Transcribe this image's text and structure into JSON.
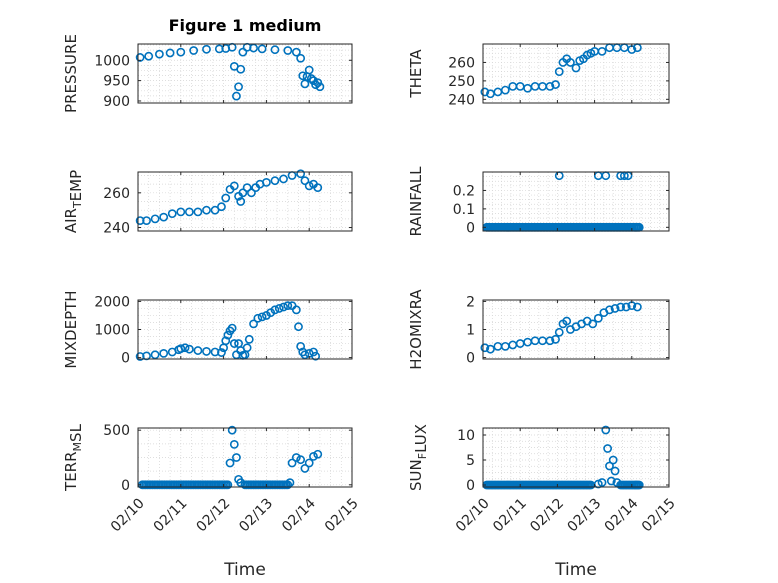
{
  "figure": {
    "title": "Figure 1 medium",
    "marker_color": "#0072BD"
  },
  "chart_data": [
    {
      "type": "scatter",
      "title": "Figure 1 medium",
      "ylabel": "PRESSURE",
      "ylabel_parts": [
        {
          "t": "PRESSURE"
        }
      ],
      "xlabel": "",
      "xlim": [
        0,
        5
      ],
      "ylim": [
        895,
        1040
      ],
      "yticks": [
        900,
        950,
        1000
      ],
      "ytick_labels": [
        "900",
        "950",
        "1000"
      ],
      "xticks": [
        0,
        1,
        2,
        3,
        4,
        5
      ],
      "xtick_labels": [
        "02/10",
        "02/11",
        "02/12",
        "02/13",
        "02/14",
        "02/15"
      ],
      "show_xticklabels": false,
      "series": [
        {
          "x": [
            0.05,
            0.25,
            0.5,
            0.75,
            1.0,
            1.3,
            1.6,
            1.9,
            2.05,
            2.2,
            2.25,
            2.3,
            2.35,
            2.4,
            2.45,
            2.55,
            2.7,
            2.9,
            3.2,
            3.5,
            3.7,
            3.8,
            3.85,
            3.9,
            3.95,
            4.0,
            4.05,
            4.1,
            4.15,
            4.2,
            4.25
          ],
          "y": [
            1007,
            1010,
            1015,
            1018,
            1020,
            1024,
            1027,
            1028,
            1029,
            1032,
            985,
            912,
            935,
            978,
            1020,
            1032,
            1030,
            1028,
            1026,
            1024,
            1020,
            1005,
            962,
            942,
            960,
            976,
            955,
            950,
            940,
            945,
            935
          ]
        }
      ]
    },
    {
      "type": "scatter",
      "ylabel": "THETA",
      "ylabel_parts": [
        {
          "t": "THETA"
        }
      ],
      "xlim": [
        0,
        5
      ],
      "ylim": [
        238,
        270
      ],
      "yticks": [
        240,
        250,
        260
      ],
      "ytick_labels": [
        "240",
        "250",
        "260"
      ],
      "xticks": [
        0,
        1,
        2,
        3,
        4,
        5
      ],
      "xtick_labels": [
        "02/10",
        "02/11",
        "02/12",
        "02/13",
        "02/14",
        "02/15"
      ],
      "show_xticklabels": false,
      "series": [
        {
          "x": [
            0.05,
            0.2,
            0.4,
            0.6,
            0.8,
            1.0,
            1.2,
            1.4,
            1.6,
            1.8,
            1.95,
            2.05,
            2.15,
            2.25,
            2.35,
            2.5,
            2.6,
            2.7,
            2.8,
            2.9,
            3.0,
            3.2,
            3.4,
            3.6,
            3.8,
            4.0,
            4.15
          ],
          "y": [
            244,
            243,
            244,
            245,
            247,
            247,
            246,
            247,
            247,
            247,
            248,
            255,
            260,
            262,
            260,
            257,
            261,
            262,
            264,
            265,
            266,
            266,
            268,
            268,
            268,
            267,
            268
          ]
        }
      ]
    },
    {
      "type": "scatter",
      "ylabel": "AIR_TEMP",
      "ylabel_parts": [
        {
          "t": "AIR"
        },
        {
          "t": "T",
          "sub": true
        },
        {
          "t": "EMP"
        }
      ],
      "xlim": [
        0,
        5
      ],
      "ylim": [
        238,
        272
      ],
      "yticks": [
        240,
        260
      ],
      "ytick_labels": [
        "240",
        "260"
      ],
      "xticks": [
        0,
        1,
        2,
        3,
        4,
        5
      ],
      "xtick_labels": [
        "02/10",
        "02/11",
        "02/12",
        "02/13",
        "02/14",
        "02/15"
      ],
      "show_xticklabels": false,
      "series": [
        {
          "x": [
            0.05,
            0.2,
            0.4,
            0.6,
            0.8,
            1.0,
            1.2,
            1.4,
            1.6,
            1.8,
            1.95,
            2.05,
            2.15,
            2.25,
            2.35,
            2.4,
            2.45,
            2.55,
            2.65,
            2.75,
            2.85,
            3.0,
            3.2,
            3.4,
            3.6,
            3.8,
            3.9,
            4.0,
            4.1,
            4.2
          ],
          "y": [
            244,
            244,
            245,
            246,
            248,
            249,
            249,
            249,
            250,
            250,
            252,
            257,
            262,
            264,
            258,
            255,
            260,
            263,
            260,
            263,
            265,
            266,
            267,
            268,
            270,
            271,
            267,
            264,
            265,
            263
          ]
        }
      ]
    },
    {
      "type": "scatter",
      "ylabel": "RAINFALL",
      "ylabel_parts": [
        {
          "t": "RAINFALL"
        }
      ],
      "xlim": [
        0,
        5
      ],
      "ylim": [
        -0.02,
        0.3
      ],
      "yticks": [
        0,
        0.1,
        0.2
      ],
      "ytick_labels": [
        "0",
        "0.1",
        "0.2"
      ],
      "xticks": [
        0,
        1,
        2,
        3,
        4,
        5
      ],
      "xtick_labels": [
        "02/10",
        "02/11",
        "02/12",
        "02/13",
        "02/14",
        "02/15"
      ],
      "show_xticklabels": false,
      "series": [
        {
          "x": [
            0.1,
            0.3,
            0.5,
            0.7,
            0.9,
            1.1,
            1.3,
            1.5,
            1.7,
            1.9,
            2.1,
            2.3,
            2.5,
            2.7,
            2.9,
            3.1,
            3.3,
            3.5,
            3.7,
            3.9,
            4.1,
            4.2,
            2.05,
            3.1,
            3.3,
            3.7,
            3.8,
            3.9
          ],
          "y": [
            0,
            0,
            0,
            0,
            0,
            0,
            0,
            0,
            0,
            0,
            0,
            0,
            0,
            0,
            0,
            0,
            0,
            0,
            0,
            0,
            0,
            0,
            0.28,
            0.28,
            0.28,
            0.28,
            0.28,
            0.28
          ]
        }
      ]
    },
    {
      "type": "scatter",
      "ylabel": "MIXDEPTH",
      "ylabel_parts": [
        {
          "t": "MIXDEPTH"
        }
      ],
      "xlim": [
        0,
        5
      ],
      "ylim": [
        -50,
        2050
      ],
      "yticks": [
        0,
        1000,
        2000
      ],
      "ytick_labels": [
        "0",
        "1000",
        "2000"
      ],
      "xticks": [
        0,
        1,
        2,
        3,
        4,
        5
      ],
      "xtick_labels": [
        "02/10",
        "02/11",
        "02/12",
        "02/13",
        "02/14",
        "02/15"
      ],
      "show_xticklabels": false,
      "series": [
        {
          "x": [
            0.05,
            0.2,
            0.4,
            0.6,
            0.8,
            0.95,
            1.0,
            1.1,
            1.2,
            1.4,
            1.6,
            1.8,
            1.95,
            2.0,
            2.05,
            2.1,
            2.15,
            2.2,
            2.25,
            2.3,
            2.35,
            2.4,
            2.45,
            2.5,
            2.55,
            2.6,
            2.7,
            2.8,
            2.9,
            3.0,
            3.1,
            3.2,
            3.3,
            3.4,
            3.5,
            3.6,
            3.7,
            3.75,
            3.8,
            3.85,
            3.9,
            4.0,
            4.1,
            4.15
          ],
          "y": [
            40,
            60,
            100,
            150,
            200,
            280,
            320,
            350,
            300,
            250,
            220,
            200,
            180,
            350,
            600,
            800,
            950,
            1050,
            500,
            100,
            500,
            250,
            80,
            100,
            350,
            650,
            1200,
            1400,
            1450,
            1500,
            1600,
            1700,
            1750,
            1800,
            1850,
            1850,
            1700,
            1100,
            400,
            200,
            100,
            150,
            200,
            50
          ]
        }
      ]
    },
    {
      "type": "scatter",
      "ylabel": "H2OMIXRA",
      "ylabel_parts": [
        {
          "t": "H2OMIXRA"
        }
      ],
      "xlim": [
        0,
        5
      ],
      "ylim": [
        -0.05,
        2.05
      ],
      "yticks": [
        0,
        1,
        2
      ],
      "ytick_labels": [
        "0",
        "1",
        "2"
      ],
      "xticks": [
        0,
        1,
        2,
        3,
        4,
        5
      ],
      "xtick_labels": [
        "02/10",
        "02/11",
        "02/12",
        "02/13",
        "02/14",
        "02/15"
      ],
      "show_xticklabels": false,
      "series": [
        {
          "x": [
            0.05,
            0.2,
            0.4,
            0.6,
            0.8,
            1.0,
            1.2,
            1.4,
            1.6,
            1.8,
            1.95,
            2.05,
            2.15,
            2.25,
            2.35,
            2.5,
            2.65,
            2.8,
            2.95,
            3.1,
            3.25,
            3.4,
            3.55,
            3.7,
            3.85,
            4.0,
            4.15
          ],
          "y": [
            0.35,
            0.3,
            0.4,
            0.4,
            0.45,
            0.5,
            0.55,
            0.6,
            0.6,
            0.6,
            0.65,
            0.9,
            1.2,
            1.3,
            1.0,
            1.1,
            1.2,
            1.3,
            1.2,
            1.4,
            1.6,
            1.7,
            1.75,
            1.8,
            1.8,
            1.85,
            1.8
          ]
        }
      ]
    },
    {
      "type": "scatter",
      "ylabel": "TERR_MSL",
      "ylabel_parts": [
        {
          "t": "TERR"
        },
        {
          "t": "M",
          "sub": true
        },
        {
          "t": "SL"
        }
      ],
      "xlabel": "Time",
      "xlim": [
        0,
        5
      ],
      "ylim": [
        -20,
        520
      ],
      "yticks": [
        0,
        500
      ],
      "ytick_labels": [
        "0",
        "500"
      ],
      "xticks": [
        0,
        1,
        2,
        3,
        4,
        5
      ],
      "xtick_labels": [
        "02/10",
        "02/11",
        "02/12",
        "02/13",
        "02/14",
        "02/15"
      ],
      "show_xticklabels": true,
      "series": [
        {
          "x": [
            0.1,
            0.3,
            0.5,
            0.7,
            0.9,
            1.1,
            1.3,
            1.5,
            1.7,
            1.9,
            2.1,
            2.15,
            2.2,
            2.25,
            2.3,
            2.35,
            2.4,
            2.5,
            2.7,
            2.9,
            3.1,
            3.3,
            3.5,
            3.55,
            3.6,
            3.7,
            3.8,
            3.9,
            4.0,
            4.1,
            4.2
          ],
          "y": [
            0,
            0,
            0,
            0,
            0,
            0,
            0,
            0,
            0,
            0,
            0,
            200,
            500,
            370,
            250,
            50,
            20,
            0,
            0,
            0,
            0,
            0,
            0,
            20,
            200,
            250,
            230,
            150,
            200,
            260,
            280
          ]
        }
      ]
    },
    {
      "type": "scatter",
      "ylabel": "SUN_FLUX",
      "ylabel_parts": [
        {
          "t": "SUN"
        },
        {
          "t": "F",
          "sub": true
        },
        {
          "t": "LUX"
        }
      ],
      "xlabel": "Time",
      "xlim": [
        0,
        5
      ],
      "ylim": [
        -0.4,
        11.4
      ],
      "yticks": [
        0,
        5,
        10
      ],
      "ytick_labels": [
        "0",
        "5",
        "10"
      ],
      "xticks": [
        0,
        1,
        2,
        3,
        4,
        5
      ],
      "xtick_labels": [
        "02/10",
        "02/11",
        "02/12",
        "02/13",
        "02/14",
        "02/15"
      ],
      "show_xticklabels": true,
      "series": [
        {
          "x": [
            0.1,
            0.3,
            0.5,
            0.7,
            0.9,
            1.1,
            1.3,
            1.5,
            1.7,
            1.9,
            2.1,
            2.3,
            2.5,
            2.7,
            2.9,
            3.1,
            3.2,
            3.3,
            3.35,
            3.4,
            3.45,
            3.5,
            3.55,
            3.6,
            3.7,
            3.9,
            4.1,
            4.2
          ],
          "y": [
            0,
            0,
            0,
            0,
            0,
            0,
            0,
            0,
            0,
            0,
            0,
            0,
            0,
            0,
            0,
            0.2,
            0.5,
            11,
            7.3,
            3.8,
            0.8,
            5.0,
            2.8,
            0.5,
            0,
            0,
            0,
            0
          ]
        }
      ]
    }
  ]
}
